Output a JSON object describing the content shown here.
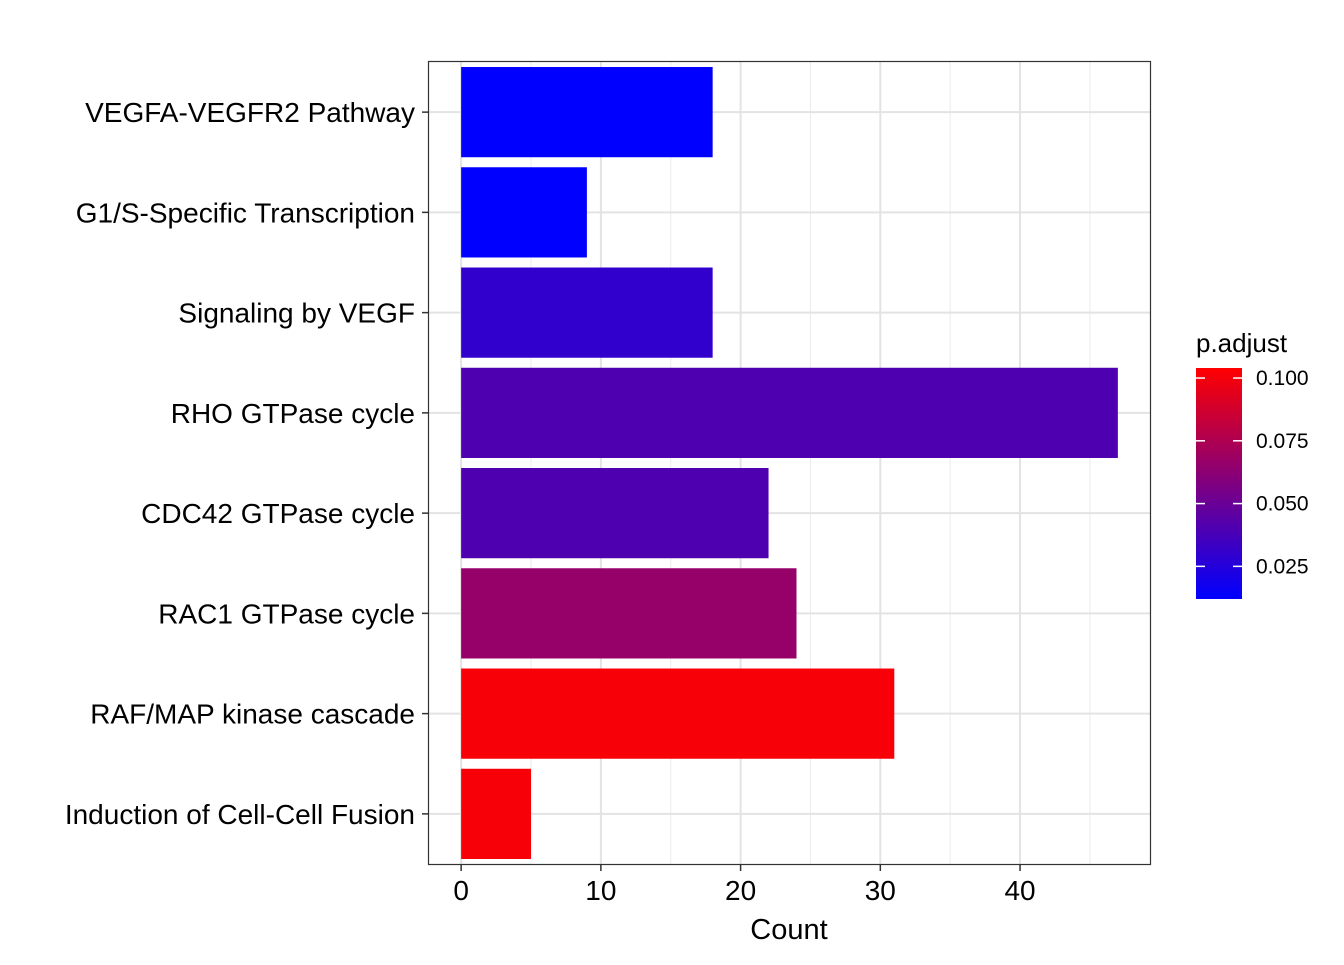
{
  "chart_data": {
    "type": "bar",
    "orientation": "horizontal",
    "categories": [
      "VEGFA-VEGFR2 Pathway",
      "G1/S-Specific Transcription",
      "Signaling by VEGF",
      "RHO GTPase cycle",
      "CDC42 GTPase cycle",
      "RAC1 GTPase cycle",
      "RAF/MAP kinase cascade",
      "Induction of Cell-Cell Fusion"
    ],
    "values": [
      18,
      9,
      18,
      47,
      22,
      24,
      31,
      5
    ],
    "color_values": [
      0.012,
      0.012,
      0.03,
      0.04,
      0.04,
      0.066,
      0.101,
      0.101
    ],
    "xlabel": "Count",
    "ylabel": "",
    "xlim": [
      -2.3,
      49.3
    ],
    "x_ticks": [
      "0",
      "10",
      "20",
      "30",
      "40"
    ],
    "x_tick_values": [
      0,
      10,
      20,
      30,
      40
    ],
    "grid": true,
    "legend": {
      "title": "p.adjust",
      "position": "right",
      "range": [
        0.012,
        0.104
      ],
      "ticks": [
        "0.100",
        "0.075",
        "0.050",
        "0.025"
      ],
      "tick_values": [
        0.1,
        0.075,
        0.05,
        0.025
      ],
      "low_color": "#0000FF",
      "high_color": "#FF0000"
    }
  }
}
